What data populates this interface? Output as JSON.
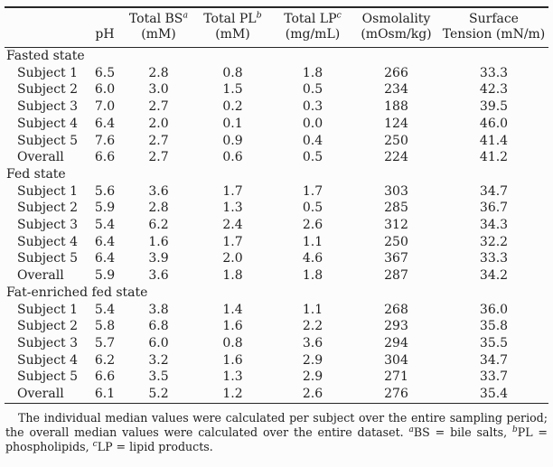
{
  "table": {
    "header": {
      "ph_label": "pH",
      "cols": [
        {
          "title": "Total BS",
          "sup": "a",
          "unit": "(mM)"
        },
        {
          "title": "Total PL",
          "sup": "b",
          "unit": "(mM)"
        },
        {
          "title": "Total LP",
          "sup": "c",
          "unit": "(mg/mL)"
        },
        {
          "title": "Osmolality",
          "sup": "",
          "unit": "(mOsm/kg)"
        },
        {
          "title": "Surface",
          "sup": "",
          "unit": "Tension (mN/m)"
        }
      ]
    },
    "sections": [
      {
        "name": "Fasted state",
        "rows": [
          {
            "label": "Subject 1",
            "values": [
              "6.5",
              "2.8",
              "0.8",
              "1.8",
              "266",
              "33.3"
            ]
          },
          {
            "label": "Subject 2",
            "values": [
              "6.0",
              "3.0",
              "1.5",
              "0.5",
              "234",
              "42.3"
            ]
          },
          {
            "label": "Subject 3",
            "values": [
              "7.0",
              "2.7",
              "0.2",
              "0.3",
              "188",
              "39.5"
            ]
          },
          {
            "label": "Subject 4",
            "values": [
              "6.4",
              "2.0",
              "0.1",
              "0.0",
              "124",
              "46.0"
            ]
          },
          {
            "label": "Subject 5",
            "values": [
              "7.6",
              "2.7",
              "0.9",
              "0.4",
              "250",
              "41.4"
            ]
          },
          {
            "label": "Overall",
            "values": [
              "6.6",
              "2.7",
              "0.6",
              "0.5",
              "224",
              "41.2"
            ]
          }
        ]
      },
      {
        "name": "Fed state",
        "rows": [
          {
            "label": "Subject 1",
            "values": [
              "5.6",
              "3.6",
              "1.7",
              "1.7",
              "303",
              "34.7"
            ]
          },
          {
            "label": "Subject 2",
            "values": [
              "5.9",
              "2.8",
              "1.3",
              "0.5",
              "285",
              "36.7"
            ]
          },
          {
            "label": "Subject 3",
            "values": [
              "5.4",
              "6.2",
              "2.4",
              "2.6",
              "312",
              "34.3"
            ]
          },
          {
            "label": "Subject 4",
            "values": [
              "6.4",
              "1.6",
              "1.7",
              "1.1",
              "250",
              "32.2"
            ]
          },
          {
            "label": "Subject 5",
            "values": [
              "6.4",
              "3.9",
              "2.0",
              "4.6",
              "367",
              "33.3"
            ]
          },
          {
            "label": "Overall",
            "values": [
              "5.9",
              "3.6",
              "1.8",
              "1.8",
              "287",
              "34.2"
            ]
          }
        ]
      },
      {
        "name": "Fat-enriched fed state",
        "rows": [
          {
            "label": "Subject 1",
            "values": [
              "5.4",
              "3.8",
              "1.4",
              "1.1",
              "268",
              "36.0"
            ]
          },
          {
            "label": "Subject 2",
            "values": [
              "5.8",
              "6.8",
              "1.6",
              "2.2",
              "293",
              "35.8"
            ]
          },
          {
            "label": "Subject 3",
            "values": [
              "5.7",
              "6.0",
              "0.8",
              "3.6",
              "294",
              "35.5"
            ]
          },
          {
            "label": "Subject 4",
            "values": [
              "6.2",
              "3.2",
              "1.6",
              "2.9",
              "304",
              "34.7"
            ]
          },
          {
            "label": "Subject 5",
            "values": [
              "6.6",
              "3.5",
              "1.3",
              "2.9",
              "271",
              "33.7"
            ]
          },
          {
            "label": "Overall",
            "values": [
              "6.1",
              "5.2",
              "1.2",
              "2.6",
              "276",
              "35.4"
            ]
          }
        ]
      }
    ]
  },
  "footnote": {
    "part1": "The individual median values were calculated per subject over the entire sampling period; the overall median values were calculated over the entire dataset. ",
    "sup_a": "a",
    "part2": "BS = bile salts, ",
    "sup_b": "b",
    "part3": "PL = phospholipids, ",
    "sup_c": "c",
    "part4": "LP = lipid products."
  },
  "colors": {
    "background": "#fcfcfc",
    "text": "#1f1f1f",
    "rule": "#262626"
  }
}
